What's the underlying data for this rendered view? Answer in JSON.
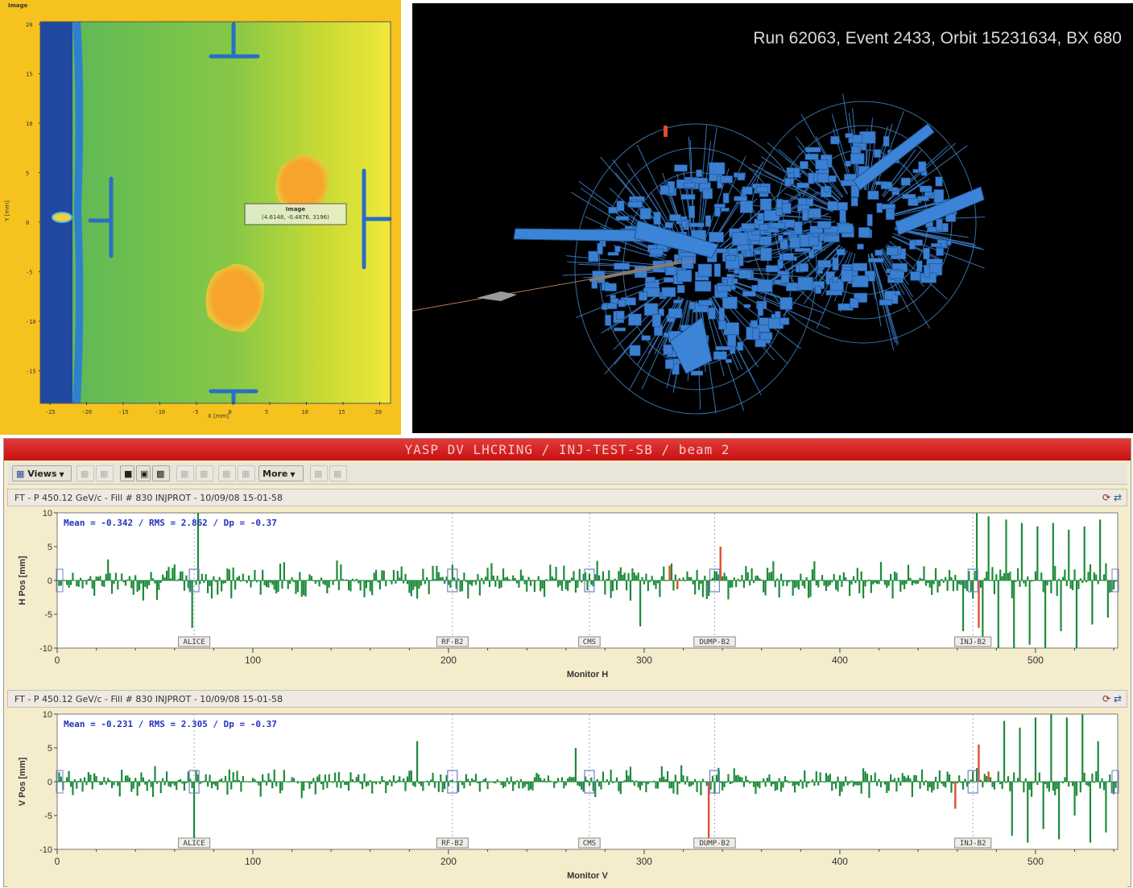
{
  "image_panel": {
    "title": "Image",
    "ylabel": "Y [mm]",
    "xlabel": "X [mm]",
    "x_ticks": [
      "-25",
      "-20",
      "-15",
      "-10",
      "-5",
      "0",
      "5",
      "10",
      "15",
      "20"
    ],
    "y_ticks": [
      "20",
      "15",
      "10",
      "5",
      "0",
      "-5",
      "-10",
      "-15"
    ],
    "cursor_label_title": "Image",
    "cursor_label_value": "(4.6148, -0.4876, 3196)"
  },
  "event_display": {
    "title": "Run 62063, Event 2433, Orbit 15231634, BX 680",
    "colors": {
      "background": "#000000",
      "towers": "#3a7fd0",
      "wireframe": "#4d9ee6",
      "highlight": "#e04a2a"
    }
  },
  "yasp": {
    "window_title": "YASP DV LHCRING / INJ-TEST-SB / beam 2",
    "toolbar": {
      "views_label": "Views",
      "more_label": "More"
    },
    "colors": {
      "bar": "#1d8a3a",
      "bar_highlight": "#e05030",
      "plot_bg": "#ffffff",
      "title": "#cc1f1f"
    }
  },
  "chart_data": [
    {
      "type": "bar",
      "title": "FT - P 450.12 GeV/c - Fill # 830 INJPROT - 10/09/08 15-01-58",
      "stats": "Mean =   -0.342 / RMS =    2.862 / Dp =   -0.37",
      "xlabel": "Monitor H",
      "ylabel": "H Pos [mm]",
      "xlim": [
        0,
        542
      ],
      "ylim": [
        -10,
        10
      ],
      "x_ticks": [
        0,
        100,
        200,
        300,
        400,
        500
      ],
      "y_ticks": [
        10,
        5,
        0,
        -5,
        -10
      ],
      "markers": [
        {
          "label": "ALICE",
          "x": 70
        },
        {
          "label": "RF-B2",
          "x": 202
        },
        {
          "label": "CMS",
          "x": 272
        },
        {
          "label": "DUMP-B2",
          "x": 336
        },
        {
          "label": "INJ-B2",
          "x": 468
        }
      ],
      "highlight_bars": [
        {
          "x": 313,
          "value": 2.2
        },
        {
          "x": 317,
          "value": -1.3
        },
        {
          "x": 339,
          "value": 5.0
        },
        {
          "x": 471,
          "value": -7.0
        }
      ],
      "spikes": [
        {
          "x": 72,
          "value": 10.0
        },
        {
          "x": 69,
          "value": -7.0
        },
        {
          "x": 298,
          "value": -6.8
        },
        {
          "x": 463,
          "value": -7.5
        },
        {
          "x": 470,
          "value": 10.0
        },
        {
          "x": 473,
          "value": -9.5
        },
        {
          "x": 476,
          "value": 9.5
        },
        {
          "x": 481,
          "value": -10.0
        },
        {
          "x": 485,
          "value": 9.0
        },
        {
          "x": 489,
          "value": -10.0
        },
        {
          "x": 493,
          "value": 8.5
        },
        {
          "x": 497,
          "value": -9.5
        },
        {
          "x": 501,
          "value": 8.0
        },
        {
          "x": 505,
          "value": -10.0
        },
        {
          "x": 509,
          "value": 8.5
        },
        {
          "x": 513,
          "value": -7.5
        },
        {
          "x": 517,
          "value": 7.5
        },
        {
          "x": 521,
          "value": -10.0
        },
        {
          "x": 525,
          "value": 8.0
        },
        {
          "x": 529,
          "value": -6.5
        },
        {
          "x": 533,
          "value": 9.0
        },
        {
          "x": 537,
          "value": -5.5
        }
      ],
      "noise_rms": 1.9,
      "seed": 7
    },
    {
      "type": "bar",
      "title": "FT - P 450.12 GeV/c - Fill # 830 INJPROT - 10/09/08 15-01-58",
      "stats": "Mean =   -0.231 / RMS =    2.305 / Dp =   -0.37",
      "xlabel": "Monitor V",
      "ylabel": "V Pos [mm]",
      "xlim": [
        0,
        542
      ],
      "ylim": [
        -10,
        10
      ],
      "x_ticks": [
        0,
        100,
        200,
        300,
        400,
        500
      ],
      "y_ticks": [
        10,
        5,
        0,
        -5,
        -10
      ],
      "markers": [
        {
          "label": "ALICE",
          "x": 70
        },
        {
          "label": "RF-B2",
          "x": 202
        },
        {
          "label": "CMS",
          "x": 272
        },
        {
          "label": "DUMP-B2",
          "x": 336
        },
        {
          "label": "INJ-B2",
          "x": 468
        }
      ],
      "highlight_bars": [
        {
          "x": 333,
          "value": -8.8
        },
        {
          "x": 459,
          "value": -4.0
        },
        {
          "x": 471,
          "value": 5.5
        },
        {
          "x": 476,
          "value": 1.5
        }
      ],
      "spikes": [
        {
          "x": 70,
          "value": -9.0
        },
        {
          "x": 184,
          "value": 6.0
        },
        {
          "x": 265,
          "value": 5.0
        },
        {
          "x": 484,
          "value": 9.0
        },
        {
          "x": 488,
          "value": -8.0
        },
        {
          "x": 492,
          "value": 8.0
        },
        {
          "x": 496,
          "value": -9.0
        },
        {
          "x": 500,
          "value": 9.5
        },
        {
          "x": 504,
          "value": -7.0
        },
        {
          "x": 508,
          "value": 10.0
        },
        {
          "x": 512,
          "value": -8.5
        },
        {
          "x": 516,
          "value": 9.5
        },
        {
          "x": 520,
          "value": -5.0
        },
        {
          "x": 524,
          "value": 10.0
        },
        {
          "x": 528,
          "value": -9.0
        },
        {
          "x": 532,
          "value": 6.0
        },
        {
          "x": 536,
          "value": -7.5
        }
      ],
      "noise_rms": 1.5,
      "seed": 19
    }
  ]
}
